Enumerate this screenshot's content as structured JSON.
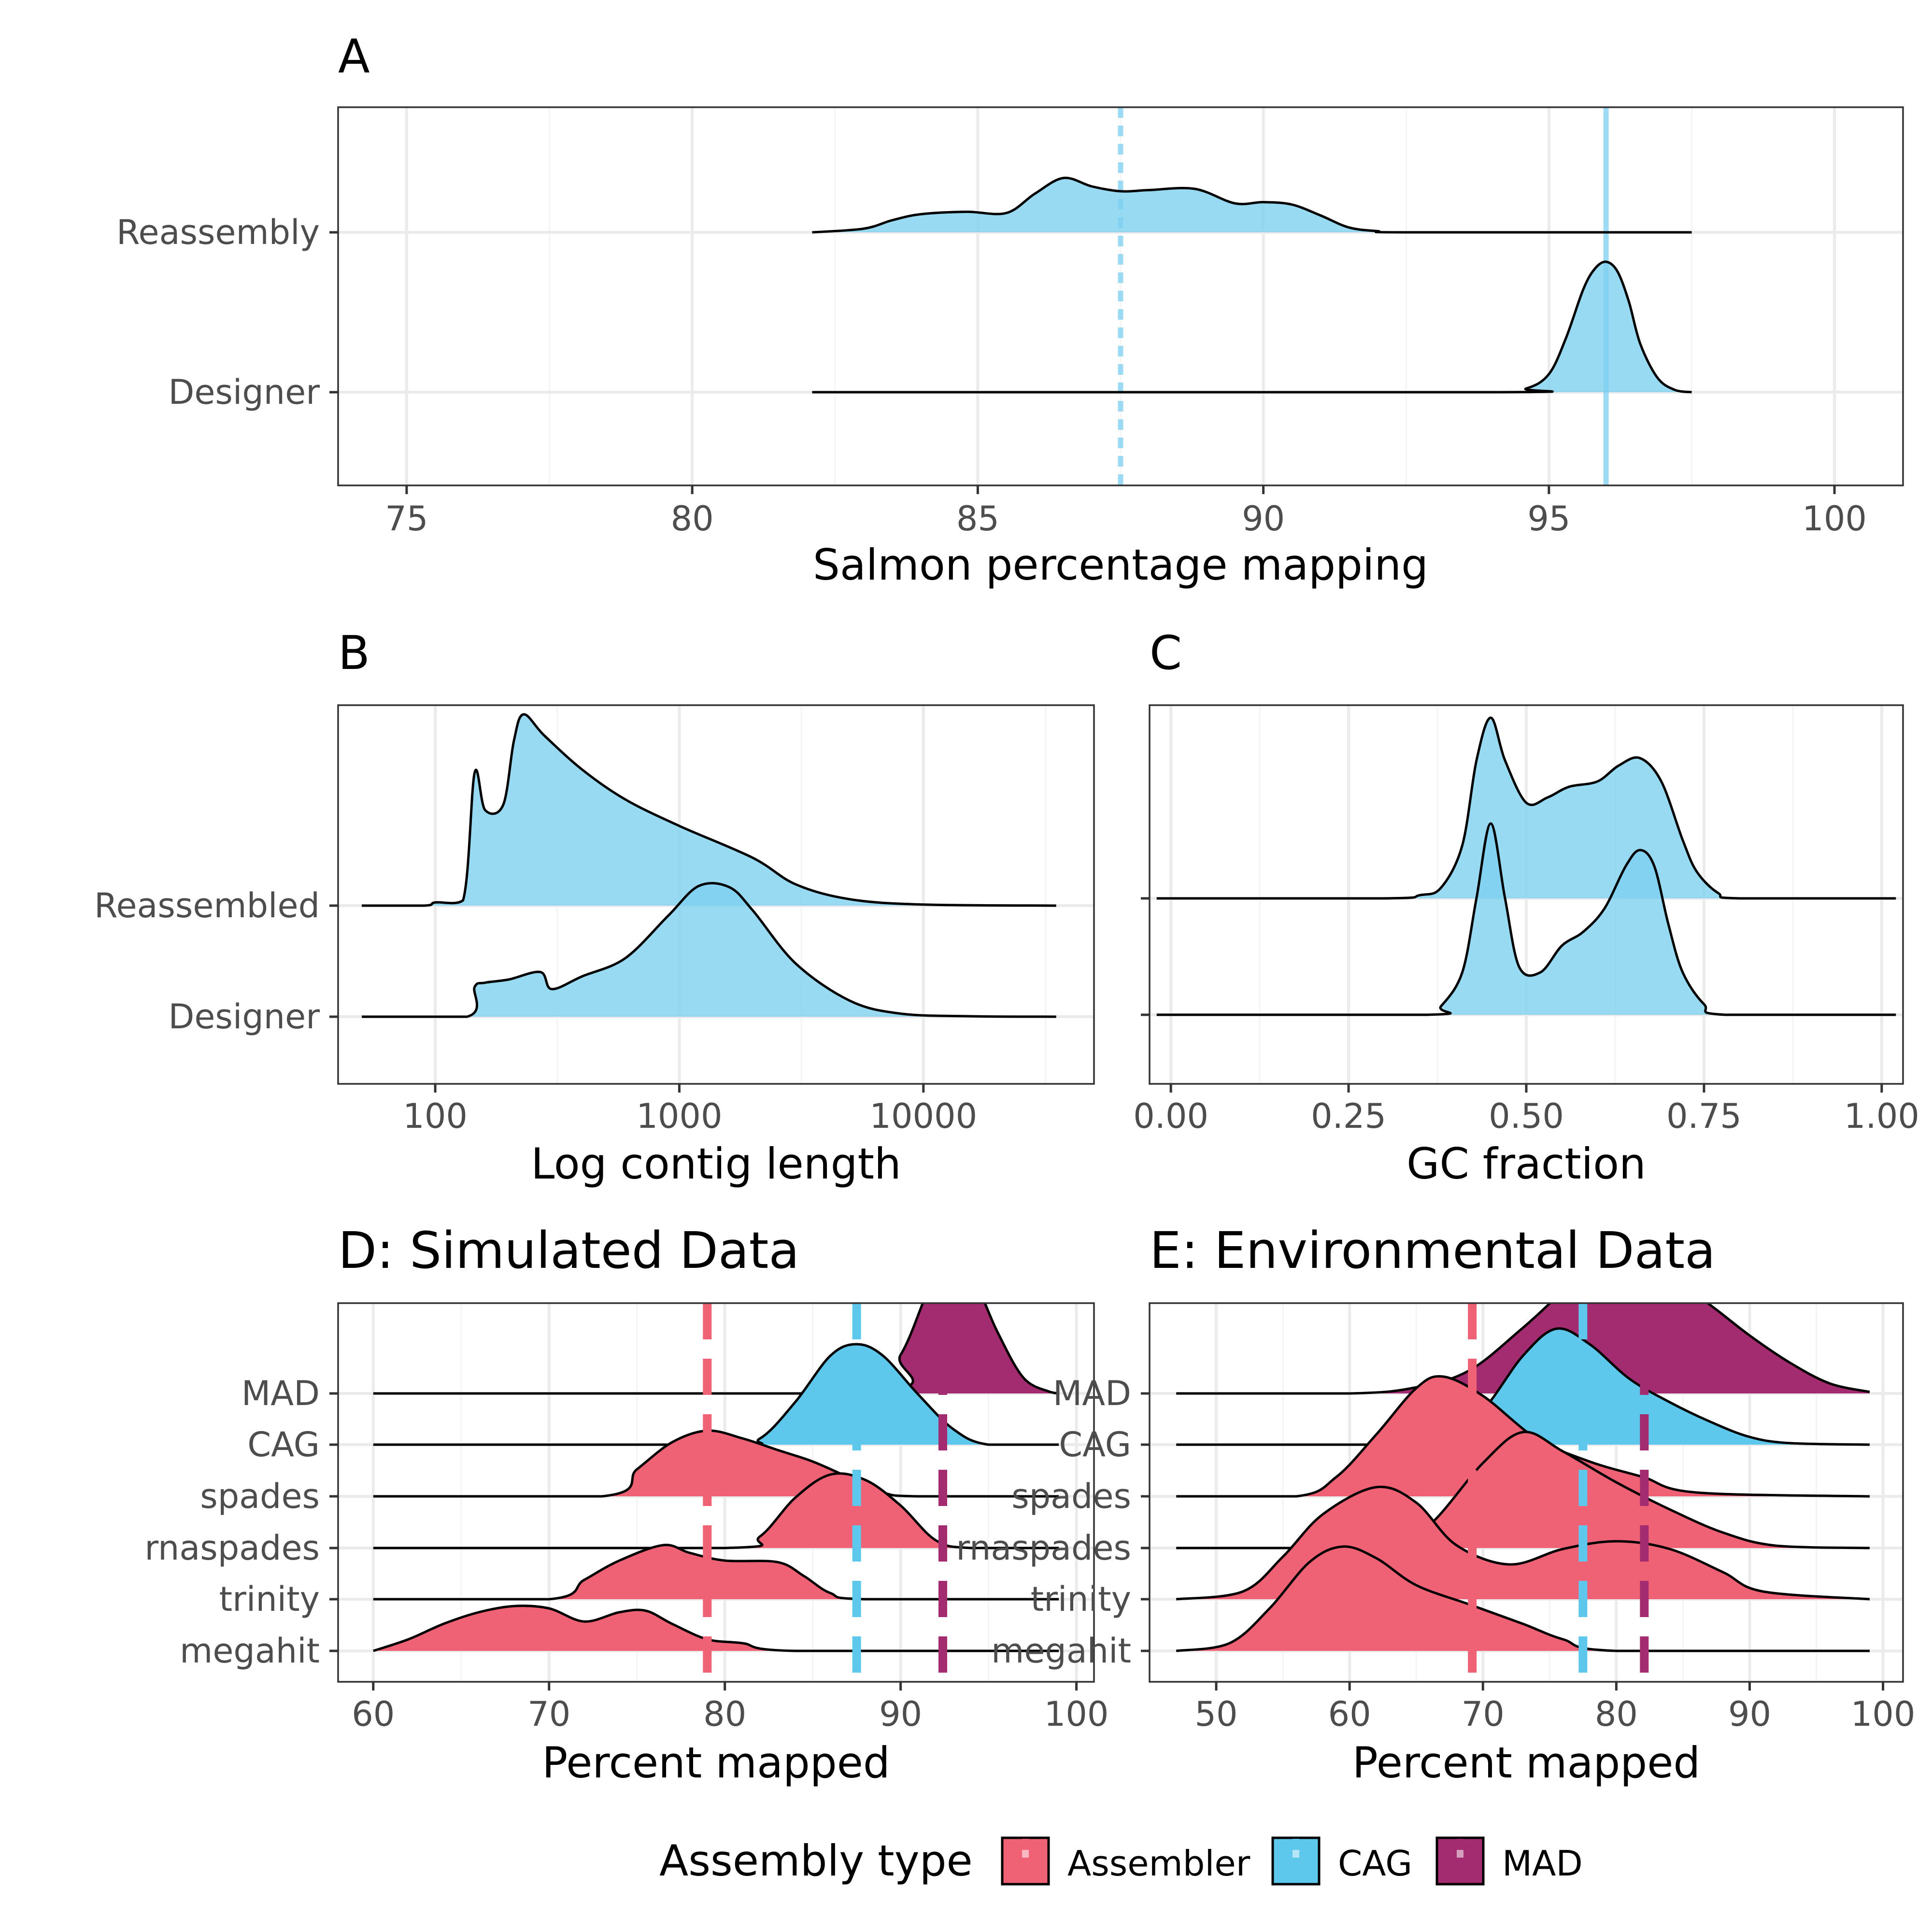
{
  "colors": {
    "reassembly_fill": "#7ccff0",
    "assembler": "#ef6275",
    "cag": "#5ec7ec",
    "mad": "#a32b6f",
    "outline": "#000000",
    "grid_major": "#ebebeb",
    "grid_minor": "#f4f4f4",
    "tick_text": "#4d4d4d"
  },
  "legend": {
    "title": "Assembly type",
    "items": [
      {
        "label": "Assembler",
        "color": "#ef6275"
      },
      {
        "label": "CAG",
        "color": "#5ec7ec"
      },
      {
        "label": "MAD",
        "color": "#a32b6f"
      }
    ],
    "placement": "bottom"
  },
  "chart_data": [
    {
      "panel": "A",
      "type": "area",
      "subtype": "ridgeline-density",
      "title": "A",
      "xlabel": "Salmon percentage mapping",
      "xlim": [
        73.8,
        101.2
      ],
      "xticks": [
        75,
        80,
        85,
        90,
        95,
        100
      ],
      "categories": [
        "Designer",
        "Reassembly"
      ],
      "grid": true,
      "vlines": [
        {
          "x": 87.5,
          "style": "dashed",
          "color": "#7ccff0"
        },
        {
          "x": 96.0,
          "style": "solid",
          "color": "#7ccff0"
        }
      ],
      "series": [
        {
          "category": "Designer",
          "x": [
            82.1,
            94.0,
            94.6,
            95.0,
            95.3,
            95.6,
            95.8,
            96.0,
            96.2,
            96.4,
            96.6,
            96.9,
            97.2,
            97.5
          ],
          "density": [
            0,
            0,
            0.03,
            0.15,
            0.45,
            0.85,
            1.02,
            1.08,
            1.0,
            0.75,
            0.4,
            0.12,
            0.02,
            0
          ]
        },
        {
          "category": "Reassembly",
          "x": [
            82.1,
            83.0,
            83.5,
            84.0,
            84.8,
            85.5,
            86.0,
            86.5,
            87.0,
            87.5,
            88.0,
            88.8,
            89.5,
            90.0,
            90.5,
            91.0,
            91.5,
            92.0,
            92.5,
            97.5
          ],
          "density": [
            0,
            0.03,
            0.1,
            0.15,
            0.17,
            0.16,
            0.32,
            0.45,
            0.38,
            0.34,
            0.35,
            0.36,
            0.24,
            0.25,
            0.23,
            0.14,
            0.04,
            0.01,
            0,
            0
          ]
        }
      ]
    },
    {
      "panel": "B",
      "type": "area",
      "subtype": "ridgeline-density",
      "title": "B",
      "xlabel": "Log contig length",
      "xscale": "log10",
      "xlim": [
        40,
        50000
      ],
      "xticks": [
        100,
        1000,
        10000
      ],
      "xtick_labels": [
        "100",
        "1000",
        "10000"
      ],
      "categories": [
        "Designer",
        "Reassembled"
      ],
      "grid": true,
      "series": [
        {
          "category": "Designer",
          "x": [
            50,
            135,
            145,
            160,
            200,
            270,
            300,
            400,
            600,
            900,
            1200,
            1600,
            2000,
            3000,
            5000,
            8000,
            15000,
            35000
          ],
          "density": [
            0,
            0,
            0.28,
            0.32,
            0.35,
            0.42,
            0.26,
            0.38,
            0.55,
            0.95,
            1.23,
            1.22,
            1.0,
            0.5,
            0.15,
            0.03,
            0.005,
            0
          ]
        },
        {
          "category": "Reassembled",
          "x": [
            50,
            90,
            100,
            130,
            145,
            160,
            190,
            210,
            230,
            280,
            400,
            600,
            1000,
            2000,
            3000,
            5000,
            10000,
            35000
          ],
          "density": [
            0,
            0,
            0.03,
            0.05,
            1.25,
            0.9,
            0.95,
            1.55,
            1.8,
            1.6,
            1.28,
            1.0,
            0.75,
            0.45,
            0.2,
            0.06,
            0.01,
            0
          ]
        }
      ]
    },
    {
      "panel": "C",
      "type": "area",
      "subtype": "ridgeline-density",
      "title": "C",
      "xlabel": "GC fraction",
      "xlim": [
        -0.03,
        1.03
      ],
      "xticks": [
        0.0,
        0.25,
        0.5,
        0.75,
        1.0
      ],
      "xtick_labels": [
        "0.00",
        "0.25",
        "0.50",
        "0.75",
        "1.00"
      ],
      "categories": [
        "Designer",
        "Reassembled"
      ],
      "grid": true,
      "series": [
        {
          "category": "Designer",
          "x": [
            -0.02,
            0.36,
            0.38,
            0.41,
            0.43,
            0.45,
            0.47,
            0.49,
            0.52,
            0.55,
            0.58,
            0.61,
            0.64,
            0.66,
            0.68,
            0.7,
            0.72,
            0.75,
            0.78,
            1.02
          ],
          "density": [
            0,
            0,
            0.08,
            0.4,
            1.1,
            1.8,
            1.1,
            0.45,
            0.4,
            0.65,
            0.78,
            1.0,
            1.4,
            1.55,
            1.4,
            0.85,
            0.4,
            0.1,
            0,
            0
          ]
        },
        {
          "category": "Reassembled",
          "x": [
            -0.02,
            0.3,
            0.35,
            0.38,
            0.41,
            0.43,
            0.45,
            0.47,
            0.5,
            0.53,
            0.56,
            0.6,
            0.63,
            0.66,
            0.69,
            0.72,
            0.74,
            0.77,
            0.8,
            1.02
          ],
          "density": [
            0,
            0,
            0.03,
            0.1,
            0.5,
            1.3,
            1.7,
            1.3,
            0.9,
            0.95,
            1.05,
            1.1,
            1.25,
            1.32,
            1.1,
            0.55,
            0.25,
            0.05,
            0,
            0
          ]
        }
      ]
    },
    {
      "panel": "D",
      "type": "area",
      "subtype": "ridgeline-density",
      "title": "D: Simulated Data",
      "xlabel": "Percent mapped",
      "xlim": [
        58,
        101
      ],
      "xticks": [
        60,
        70,
        80,
        90,
        100
      ],
      "categories": [
        "megahit",
        "trinity",
        "rnaspades",
        "spades",
        "CAG",
        "MAD"
      ],
      "grid": true,
      "vlines": [
        {
          "x": 79.0,
          "group": "Assembler",
          "color": "#ef6275",
          "style": "dashed"
        },
        {
          "x": 87.5,
          "group": "CAG",
          "color": "#5ec7ec",
          "style": "dashed"
        },
        {
          "x": 92.4,
          "group": "MAD",
          "color": "#a32b6f",
          "style": "dashed"
        }
      ],
      "series": [
        {
          "category": "megahit",
          "group": "Assembler",
          "x": [
            60,
            62,
            64,
            66,
            68,
            70,
            72,
            74,
            75.5,
            77,
            79,
            81,
            84,
            99
          ],
          "density": [
            0,
            0.15,
            0.35,
            0.5,
            0.58,
            0.55,
            0.38,
            0.5,
            0.52,
            0.35,
            0.15,
            0.1,
            0,
            0
          ]
        },
        {
          "category": "trinity",
          "group": "Assembler",
          "x": [
            60,
            70,
            72,
            74,
            76.5,
            78,
            80,
            83,
            84.5,
            86,
            88,
            99
          ],
          "density": [
            0,
            0,
            0.25,
            0.5,
            0.7,
            0.6,
            0.5,
            0.48,
            0.3,
            0.08,
            0,
            0
          ]
        },
        {
          "category": "rnaspades",
          "group": "Assembler",
          "x": [
            60,
            80,
            82,
            84,
            86,
            88,
            90,
            92,
            94,
            99
          ],
          "density": [
            0,
            0,
            0.15,
            0.65,
            0.95,
            0.88,
            0.55,
            0.1,
            0,
            0
          ]
        },
        {
          "category": "spades",
          "group": "Assembler",
          "x": [
            60,
            73,
            75,
            77,
            79,
            81,
            83,
            85,
            87,
            89,
            91,
            99
          ],
          "density": [
            0,
            0,
            0.35,
            0.7,
            0.85,
            0.75,
            0.6,
            0.45,
            0.25,
            0.05,
            0,
            0
          ]
        },
        {
          "category": "CAG",
          "group": "CAG",
          "x": [
            60,
            80,
            82,
            84,
            86,
            87.5,
            89,
            91,
            93,
            95,
            99
          ],
          "density": [
            0,
            0,
            0.08,
            0.55,
            1.15,
            1.3,
            1.15,
            0.65,
            0.2,
            0,
            0
          ]
        },
        {
          "category": "MAD",
          "group": "MAD",
          "x": [
            60,
            88,
            90,
            91.5,
            92.6,
            94,
            95.5,
            97,
            98.5,
            99
          ],
          "density": [
            0,
            0,
            0.5,
            1.3,
            1.8,
            1.55,
            0.8,
            0.2,
            0.02,
            0
          ]
        }
      ]
    },
    {
      "panel": "E",
      "type": "area",
      "subtype": "ridgeline-density",
      "title": "E: Environmental Data",
      "xlabel": "Percent mapped",
      "xlim": [
        45,
        101.5
      ],
      "xticks": [
        50,
        60,
        70,
        80,
        90,
        100
      ],
      "categories": [
        "megahit",
        "trinity",
        "rnaspades",
        "spades",
        "CAG",
        "MAD"
      ],
      "grid": true,
      "vlines": [
        {
          "x": 69.2,
          "group": "Assembler",
          "color": "#ef6275",
          "style": "dashed"
        },
        {
          "x": 77.5,
          "group": "CAG",
          "color": "#5ec7ec",
          "style": "dashed"
        },
        {
          "x": 82.1,
          "group": "MAD",
          "color": "#a32b6f",
          "style": "dashed"
        }
      ],
      "series": [
        {
          "category": "megahit",
          "group": "Assembler",
          "x": [
            47,
            51,
            54,
            57,
            59.5,
            62,
            65,
            69,
            73,
            76,
            80,
            99
          ],
          "density": [
            0,
            0.1,
            0.55,
            1.15,
            1.35,
            1.2,
            0.85,
            0.6,
            0.35,
            0.15,
            0,
            0
          ]
        },
        {
          "category": "trinity",
          "group": "Assembler",
          "x": [
            47,
            52,
            55,
            58,
            62,
            65,
            68,
            72,
            76,
            80,
            84,
            88,
            91,
            99
          ],
          "density": [
            0,
            0.1,
            0.55,
            1.1,
            1.45,
            1.25,
            0.7,
            0.45,
            0.65,
            0.75,
            0.65,
            0.35,
            0.1,
            0
          ]
        },
        {
          "category": "rnaspades",
          "group": "Assembler",
          "x": [
            47,
            60,
            63,
            66,
            70,
            73,
            76,
            80,
            84,
            88,
            92,
            99
          ],
          "density": [
            0,
            0,
            0.1,
            0.3,
            1.1,
            1.5,
            1.25,
            0.85,
            0.5,
            0.2,
            0.03,
            0
          ]
        },
        {
          "category": "spades",
          "group": "Assembler",
          "x": [
            47,
            56,
            59,
            62,
            65,
            67,
            70,
            74,
            78,
            82,
            86,
            99
          ],
          "density": [
            0,
            0,
            0.25,
            0.8,
            1.4,
            1.55,
            1.3,
            0.75,
            0.45,
            0.25,
            0.05,
            0
          ]
        },
        {
          "category": "CAG",
          "group": "CAG",
          "x": [
            47,
            64,
            67,
            70,
            73,
            75.5,
            78,
            81,
            84,
            87,
            90,
            93,
            99
          ],
          "density": [
            0,
            0,
            0.1,
            0.45,
            1.15,
            1.5,
            1.3,
            0.85,
            0.55,
            0.3,
            0.1,
            0.02,
            0
          ]
        },
        {
          "category": "MAD",
          "group": "MAD",
          "x": [
            47,
            60,
            65,
            69,
            73,
            77,
            80.5,
            84,
            87,
            90,
            93,
            96,
            99
          ],
          "density": [
            0,
            0,
            0.08,
            0.3,
            0.85,
            1.45,
            1.7,
            1.5,
            1.15,
            0.75,
            0.4,
            0.13,
            0.02
          ]
        }
      ]
    }
  ]
}
